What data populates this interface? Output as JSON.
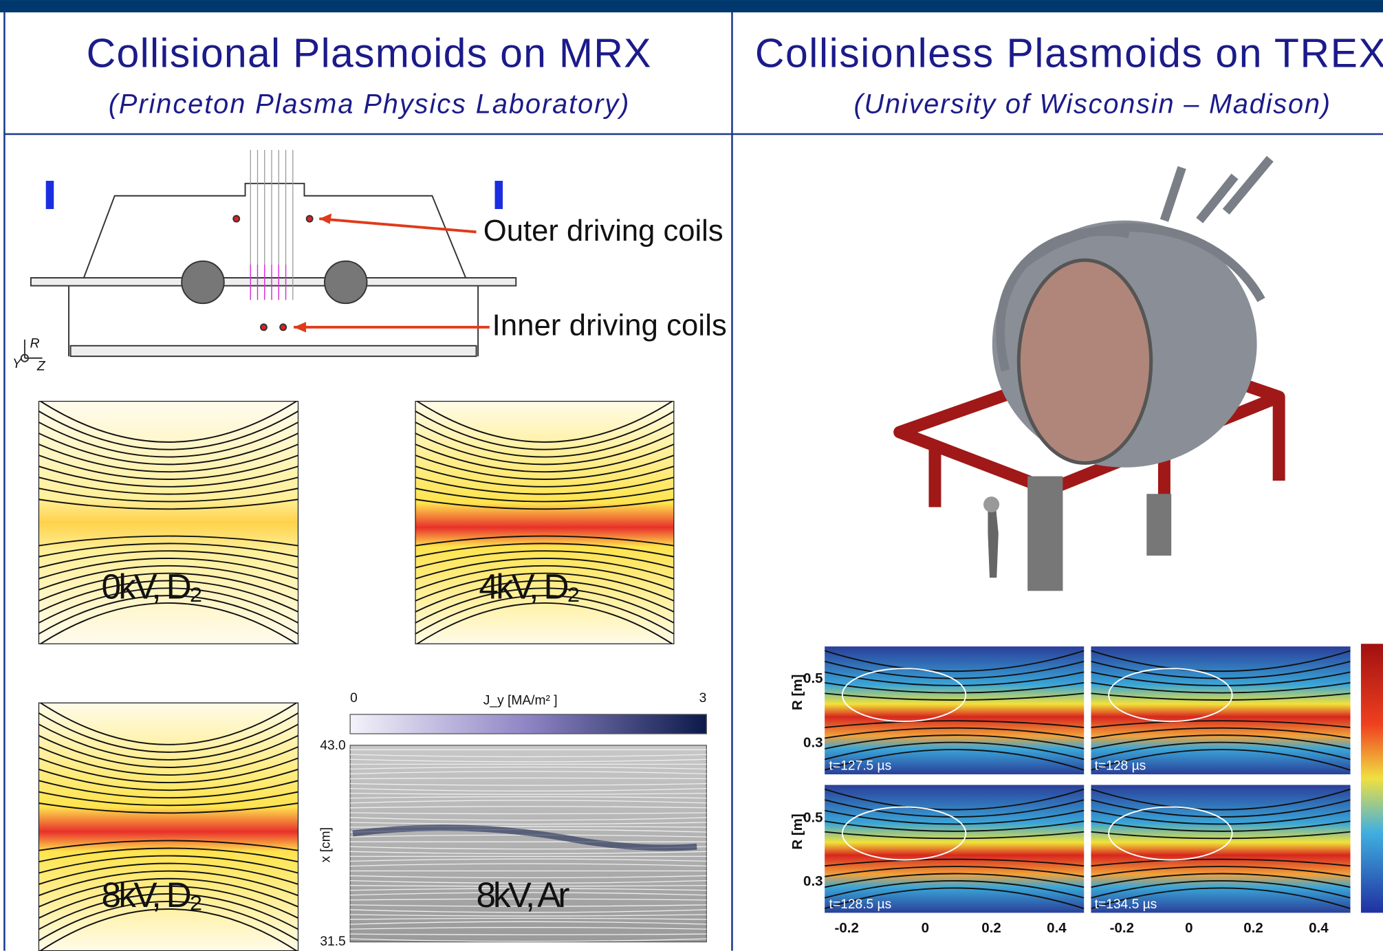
{
  "left": {
    "title": "Collisional Plasmoids on MRX",
    "subtitle": "(Princeton Plasma Physics Laboratory)",
    "schematic": {
      "outer_label": "Outer driving coils",
      "inner_label": "Inner driving coils",
      "axis_r": "R",
      "axis_y": "Y",
      "axis_z": "Z"
    },
    "panels": [
      "0kV, D₂",
      "4kV, D₂",
      "8kV, D₂",
      "8kV, Ar"
    ],
    "colorbar": {
      "min": "0",
      "label": "J_y [MA/m² ]",
      "max": "3"
    },
    "y_axis": {
      "label": "x [cm]",
      "top": "43.0",
      "bottom": "31.5"
    }
  },
  "right": {
    "title": "Collisionless Plasmoids on TREX",
    "subtitle": "(University of Wisconsin – Madison)",
    "plots": {
      "y_label": "R [m]",
      "y_ticks": [
        "0.5",
        "0.3"
      ],
      "x_ticks": [
        "-0.2",
        "0",
        "0.2",
        "0.4"
      ],
      "times": [
        "t=127.5 µs",
        "t=128 µs",
        "t=128.5 µs",
        "t=134.5 µs"
      ]
    }
  }
}
